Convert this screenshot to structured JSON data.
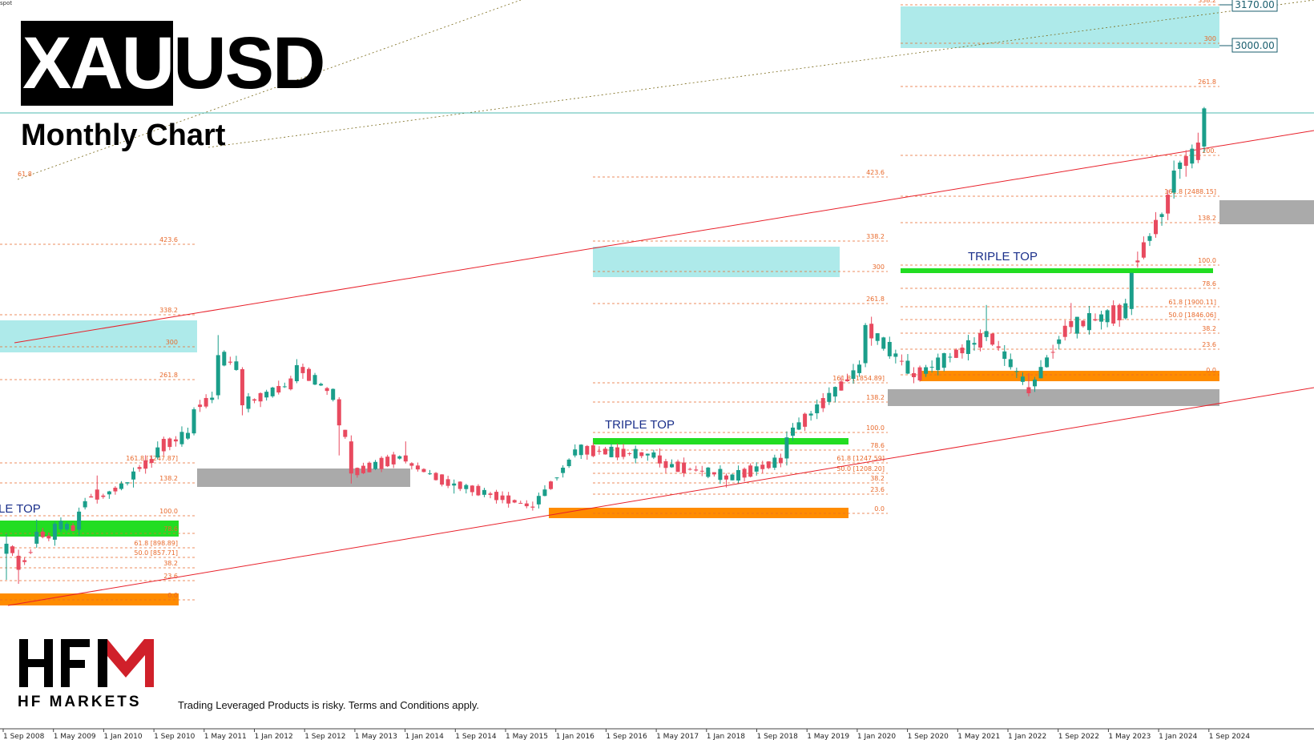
{
  "header": {
    "title_dark": "XAU",
    "title_light": "USD",
    "subtitle": "Monthly Chart",
    "corner_tag": "spot"
  },
  "footer": {
    "logo_text": "HFM",
    "logo_subtitle": "HF MARKETS",
    "disclaimer": "Trading Leveraged Products is risky. Terms and Conditions apply."
  },
  "colors": {
    "bull_candle": "#1a9e8a",
    "bear_candle": "#e84a5f",
    "trend_channel": "#e8202a",
    "fib_lines": "#e8692b",
    "target_zone": "#aeeaea",
    "support_zone_orange": "#ff8c00",
    "breakout_zone_green": "#22dd22",
    "pullback_zone_grey": "#aaaaaa",
    "current_price_line": "#4db8b0",
    "logo_red": "#d0202a"
  },
  "chart_data": {
    "type": "candlestick",
    "title": "XAUUSD",
    "subtitle": "Monthly Chart",
    "timeframe": "monthly",
    "x_tick_labels": [
      "1 Sep 2008",
      "1 May 2009",
      "1 Jan 2010",
      "1 Sep 2010",
      "1 May 2011",
      "1 Jan 2012",
      "1 Sep 2012",
      "1 May 2013",
      "1 Jan 2014",
      "1 Sep 2014",
      "1 May 2015",
      "1 Jan 2016",
      "1 Sep 2016",
      "1 May 2017",
      "1 Jan 2018",
      "1 Sep 2018",
      "1 May 2019",
      "1 Jan 2020",
      "1 Sep 2020",
      "1 May 2021",
      "1 Jan 2022",
      "1 Sep 2022",
      "1 May 2023",
      "1 Jan 2024",
      "1 Sep 2024"
    ],
    "price_labels": [
      {
        "label": "3170.00",
        "value": 3170.0
      },
      {
        "label": "3000.00",
        "value": 3000.0
      }
    ],
    "patterns": [
      {
        "label": "LE TOP",
        "period": "2008-2011"
      },
      {
        "label": "TRIPLE TOP",
        "period": "2016-2019"
      },
      {
        "label": "TRIPLE TOP",
        "period": "2020-2024"
      }
    ],
    "fib_levels": {
      "structure_1": [
        "423.6",
        "338.2",
        "300",
        "261.8",
        "161.8 [1247.87]",
        "138.2",
        "100.0",
        "78.6",
        "61.8 [898.89]",
        "50.0 [857.71]",
        "38.2",
        "23.6",
        "0.0"
      ],
      "structure_2": [
        "423.6",
        "338.2",
        "300",
        "261.8",
        "161.8 [1854.89]",
        "138.2",
        "100.0",
        "78.6",
        "61.8 [1247.59]",
        "50.0 [1208.20]",
        "38.2",
        "23.6",
        "0.0"
      ],
      "structure_3": [
        "338.2",
        "300",
        "261.8",
        "200.",
        "161.8 [2488.15]",
        "138.2",
        "100.0",
        "78.6",
        "61.8 [1900.11]",
        "50.0 [1846.06]",
        "38.2",
        "23.6",
        "0.0"
      ]
    },
    "channel_label": "61.8",
    "candles_approx": [
      {
        "t": "2008-09",
        "o": 830,
        "h": 930,
        "l": 700,
        "c": 880
      },
      {
        "t": "2008-11",
        "o": 820,
        "h": 850,
        "l": 680,
        "c": 750
      },
      {
        "t": "2009-02",
        "o": 880,
        "h": 1000,
        "l": 860,
        "c": 940
      },
      {
        "t": "2009-05",
        "o": 900,
        "h": 990,
        "l": 870,
        "c": 980
      },
      {
        "t": "2009-09",
        "o": 950,
        "h": 1060,
        "l": 920,
        "c": 1040
      },
      {
        "t": "2009-12",
        "o": 1150,
        "h": 1220,
        "l": 1080,
        "c": 1100
      },
      {
        "t": "2010-06",
        "o": 1200,
        "h": 1260,
        "l": 1160,
        "c": 1240
      },
      {
        "t": "2010-10",
        "o": 1310,
        "h": 1390,
        "l": 1300,
        "c": 1360
      },
      {
        "t": "2011-04",
        "o": 1430,
        "h": 1560,
        "l": 1420,
        "c": 1550
      },
      {
        "t": "2011-08",
        "o": 1620,
        "h": 1920,
        "l": 1600,
        "c": 1820
      },
      {
        "t": "2011-12",
        "o": 1750,
        "h": 1760,
        "l": 1520,
        "c": 1570
      },
      {
        "t": "2012-09",
        "o": 1690,
        "h": 1800,
        "l": 1680,
        "c": 1770
      },
      {
        "t": "2013-04",
        "o": 1600,
        "h": 1610,
        "l": 1320,
        "c": 1470
      },
      {
        "t": "2013-06",
        "o": 1390,
        "h": 1420,
        "l": 1180,
        "c": 1230
      },
      {
        "t": "2014-03",
        "o": 1320,
        "h": 1390,
        "l": 1280,
        "c": 1290
      },
      {
        "t": "2014-11",
        "o": 1170,
        "h": 1200,
        "l": 1130,
        "c": 1180
      },
      {
        "t": "2015-12",
        "o": 1065,
        "h": 1090,
        "l": 1045,
        "c": 1060
      },
      {
        "t": "2016-07",
        "o": 1320,
        "h": 1375,
        "l": 1310,
        "c": 1350
      },
      {
        "t": "2017-09",
        "o": 1320,
        "h": 1355,
        "l": 1260,
        "c": 1280
      },
      {
        "t": "2018-08",
        "o": 1220,
        "h": 1230,
        "l": 1160,
        "c": 1200
      },
      {
        "t": "2019-06",
        "o": 1305,
        "h": 1440,
        "l": 1270,
        "c": 1410
      },
      {
        "t": "2020-07",
        "o": 1780,
        "h": 1980,
        "l": 1760,
        "c": 1970
      },
      {
        "t": "2021-03",
        "o": 1730,
        "h": 1760,
        "l": 1680,
        "c": 1710
      },
      {
        "t": "2022-03",
        "o": 1910,
        "h": 2070,
        "l": 1890,
        "c": 1940
      },
      {
        "t": "2022-10",
        "o": 1660,
        "h": 1730,
        "l": 1615,
        "c": 1630
      },
      {
        "t": "2023-05",
        "o": 1990,
        "h": 2080,
        "l": 1930,
        "c": 1960
      },
      {
        "t": "2024-03",
        "o": 2050,
        "h": 2230,
        "l": 2020,
        "c": 2230
      },
      {
        "t": "2024-10",
        "o": 2630,
        "h": 2790,
        "l": 2600,
        "c": 2740
      },
      {
        "t": "2025-03",
        "o": 2860,
        "h": 3057,
        "l": 2830,
        "c": 3050
      }
    ]
  }
}
